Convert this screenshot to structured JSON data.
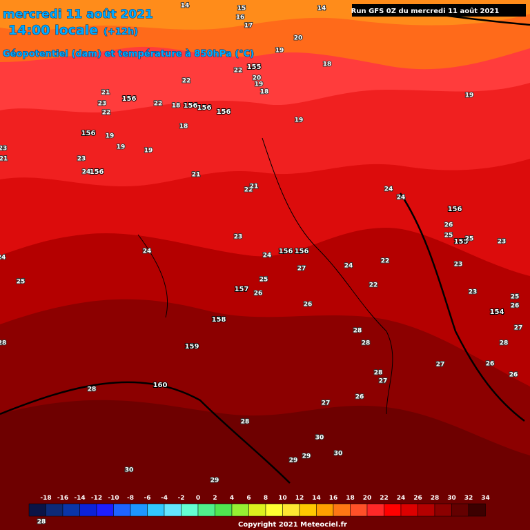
{
  "header": {
    "date": "mercredi 11 août 2021",
    "time": "14:00 locale",
    "offset": "(+12h)",
    "subtitle": "Géopotentiel (dam) et température à 850hPa (°C)",
    "run": "Run GFS 0Z du mercredi 11 août 2021"
  },
  "height_labels": [
    156,
    156,
    156,
    156,
    155,
    156,
    156,
    156,
    156,
    157,
    158,
    159,
    160,
    155,
    154,
    156
  ],
  "temperature_labels": [
    14,
    14,
    15,
    16,
    17,
    19,
    20,
    18,
    19,
    22,
    20,
    19,
    18,
    22,
    18,
    18,
    22,
    21,
    23,
    22,
    19,
    19,
    19,
    23,
    24,
    21,
    22,
    21,
    19,
    24,
    24,
    26,
    25,
    25,
    23,
    23,
    23,
    24,
    23,
    24,
    27,
    25,
    26,
    24,
    22,
    22,
    26,
    25,
    28,
    28,
    28,
    27,
    26,
    27,
    28,
    28,
    27,
    28,
    27,
    26,
    25,
    26,
    26,
    30,
    29,
    29,
    30,
    30,
    29,
    28,
    21,
    23,
    24,
    28
  ],
  "legend": {
    "ticks": [
      -18,
      -16,
      -14,
      -12,
      -10,
      -8,
      -6,
      -4,
      -2,
      0,
      2,
      4,
      6,
      8,
      10,
      12,
      14,
      16,
      18,
      20,
      22,
      24,
      26,
      28,
      30,
      32,
      34
    ],
    "colors": [
      "#0a1446",
      "#0d2a78",
      "#0a35a8",
      "#0c22d8",
      "#1e1eff",
      "#1e64ff",
      "#1e96ff",
      "#32c8ff",
      "#64e6ff",
      "#64ffd2",
      "#50f08c",
      "#50e650",
      "#96f032",
      "#dcf01e",
      "#ffff32",
      "#ffe632",
      "#ffc800",
      "#ffa000",
      "#ff7814",
      "#ff5028",
      "#ff2828",
      "#ff0000",
      "#dc0000",
      "#b40000",
      "#8c0000",
      "#640000",
      "#3c0000"
    ]
  },
  "copyright": "Copyright 2021 Meteociel.fr"
}
